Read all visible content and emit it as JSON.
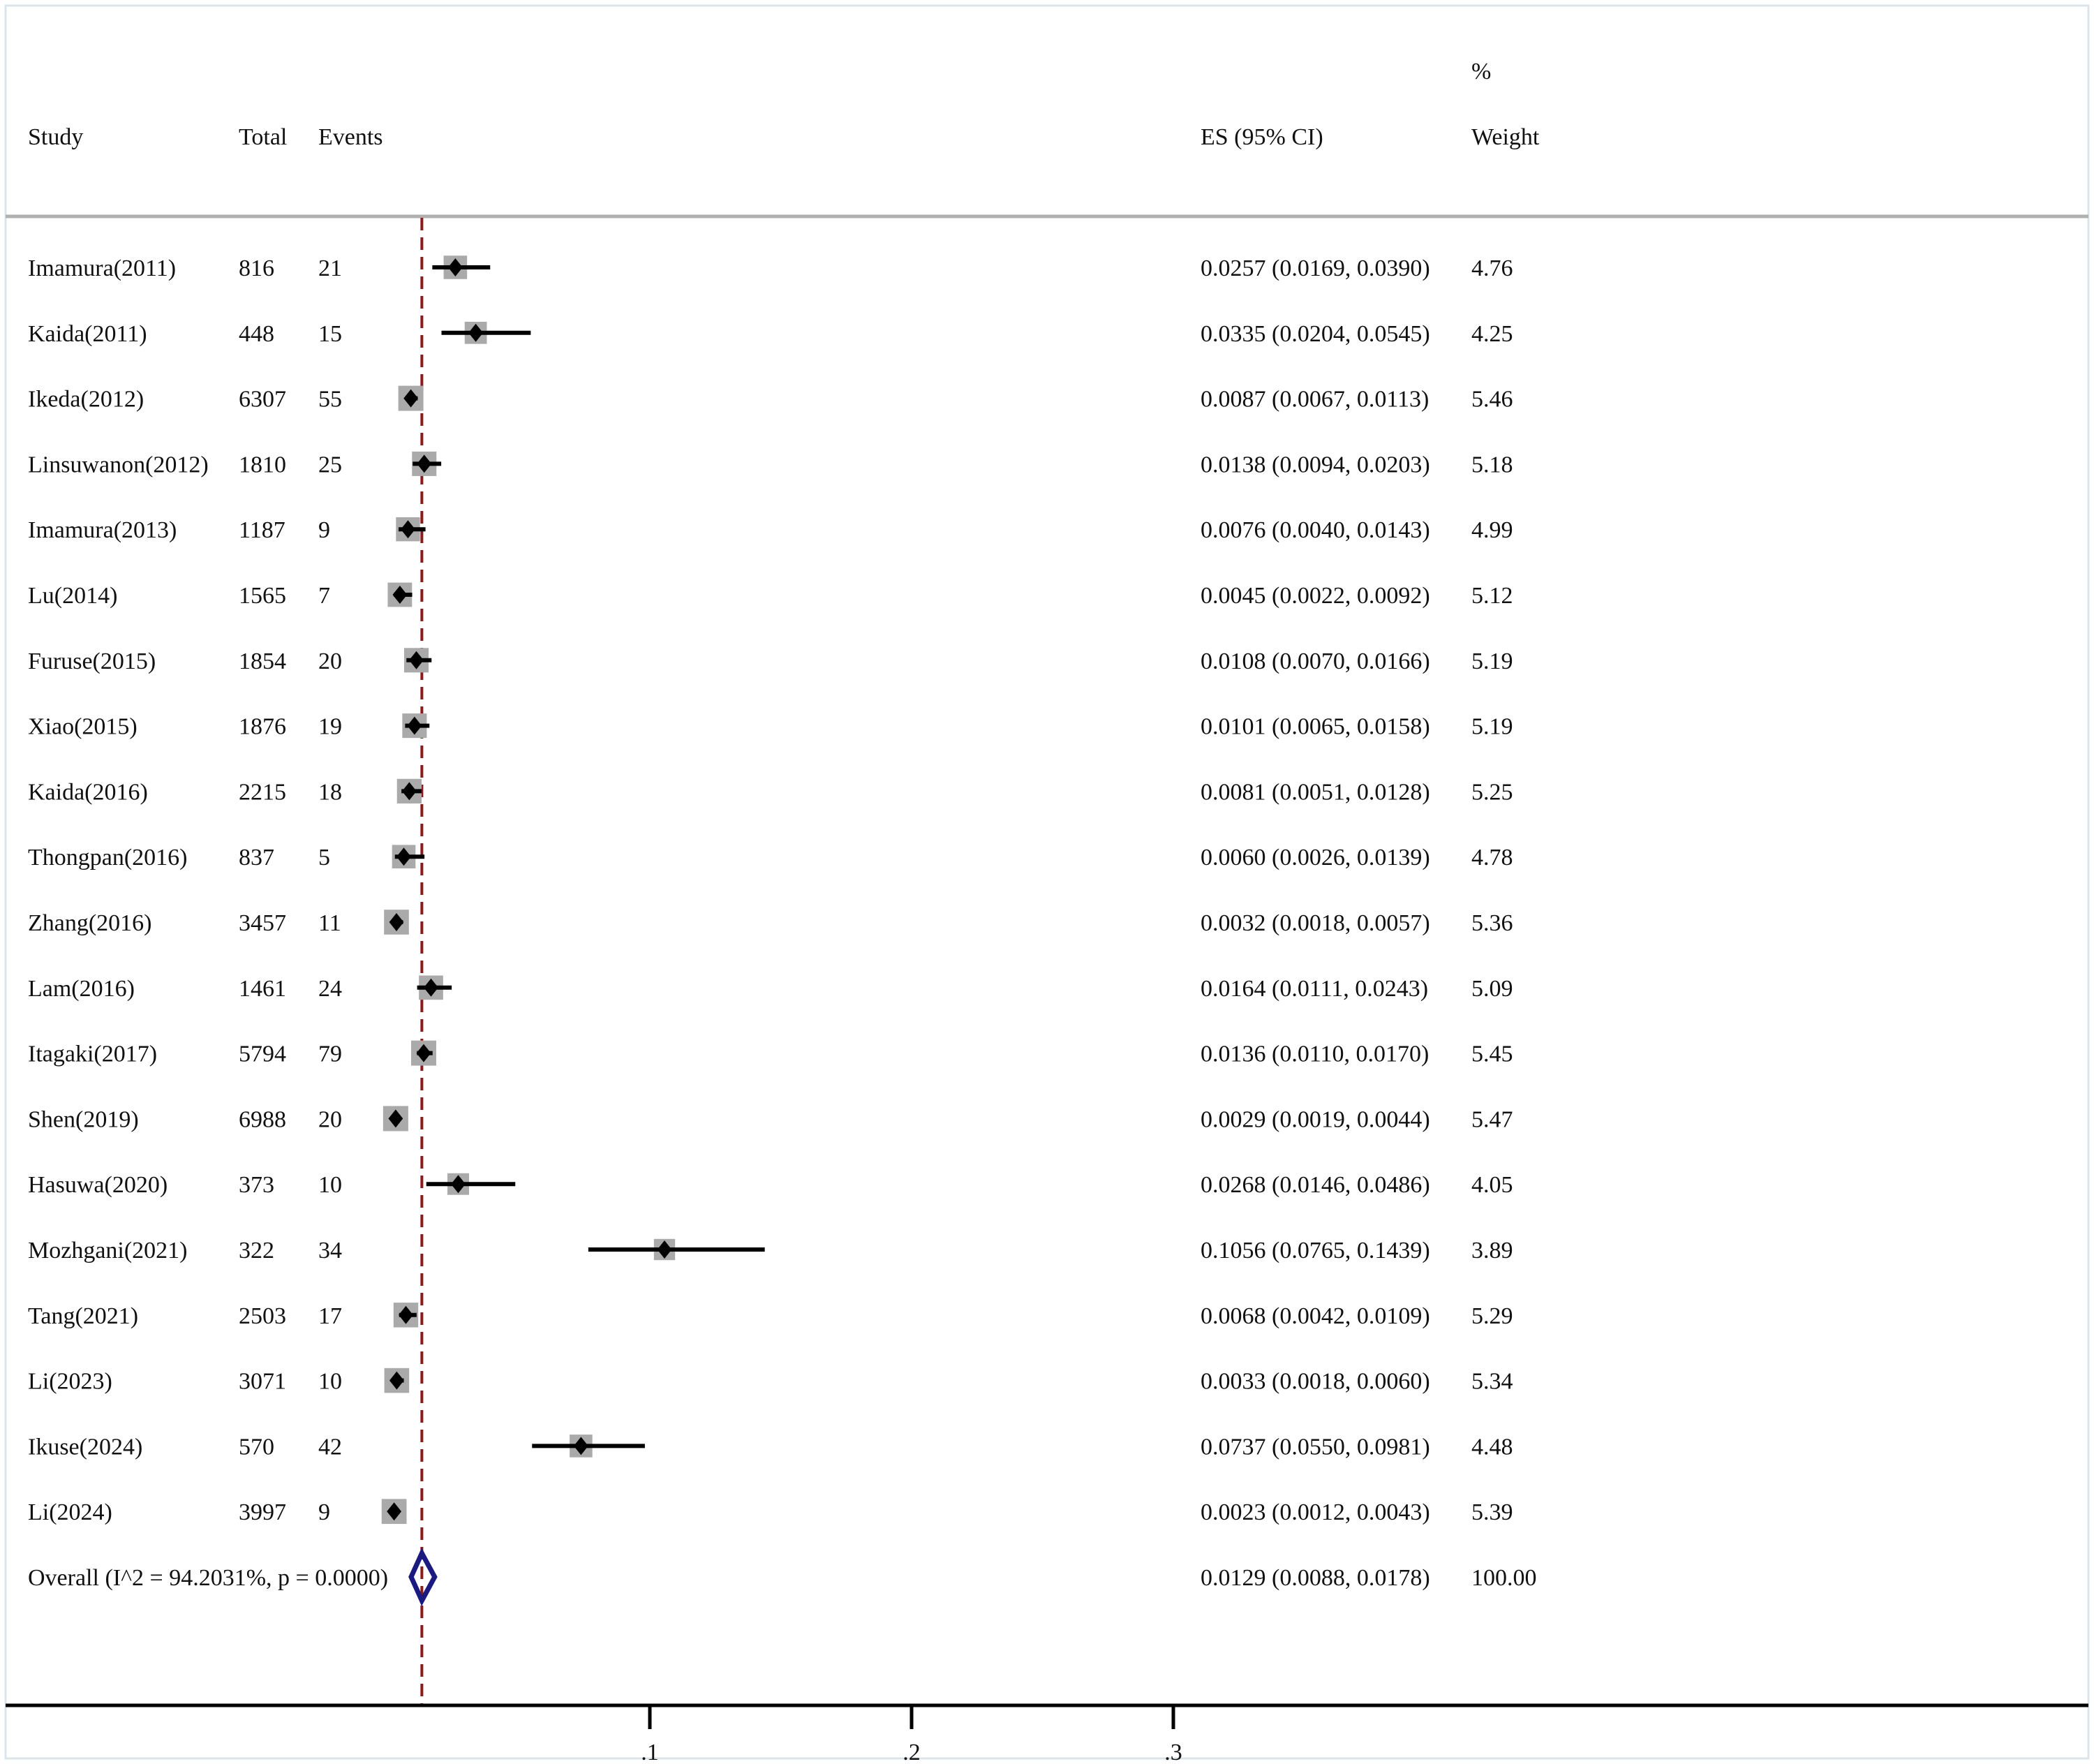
{
  "chart_data": {
    "type": "forest",
    "headers": {
      "study": "Study",
      "total": "Total",
      "events": "Events",
      "es": "ES (95% CI)",
      "weight_line1": "%",
      "weight_line2": "Weight"
    },
    "studies": [
      {
        "study": "Imamura(2011)",
        "total": "816",
        "events": "21",
        "es": 0.0257,
        "lo": 0.0169,
        "hi": 0.039,
        "es_text": "0.0257 (0.0169, 0.0390)",
        "weight": 4.76,
        "weight_text": "4.76"
      },
      {
        "study": "Kaida(2011)",
        "total": "448",
        "events": "15",
        "es": 0.0335,
        "lo": 0.0204,
        "hi": 0.0545,
        "es_text": "0.0335 (0.0204, 0.0545)",
        "weight": 4.25,
        "weight_text": "4.25"
      },
      {
        "study": "Ikeda(2012)",
        "total": "6307",
        "events": "55",
        "es": 0.0087,
        "lo": 0.0067,
        "hi": 0.0113,
        "es_text": "0.0087 (0.0067, 0.0113)",
        "weight": 5.46,
        "weight_text": "5.46"
      },
      {
        "study": "Linsuwanon(2012)",
        "total": "1810",
        "events": "25",
        "es": 0.0138,
        "lo": 0.0094,
        "hi": 0.0203,
        "es_text": "0.0138 (0.0094, 0.0203)",
        "weight": 5.18,
        "weight_text": "5.18"
      },
      {
        "study": "Imamura(2013)",
        "total": "1187",
        "events": "9",
        "es": 0.0076,
        "lo": 0.004,
        "hi": 0.0143,
        "es_text": "0.0076 (0.0040, 0.0143)",
        "weight": 4.99,
        "weight_text": "4.99"
      },
      {
        "study": "Lu(2014)",
        "total": "1565",
        "events": "7",
        "es": 0.0045,
        "lo": 0.0022,
        "hi": 0.0092,
        "es_text": "0.0045 (0.0022, 0.0092)",
        "weight": 5.12,
        "weight_text": "5.12"
      },
      {
        "study": "Furuse(2015)",
        "total": "1854",
        "events": "20",
        "es": 0.0108,
        "lo": 0.007,
        "hi": 0.0166,
        "es_text": "0.0108 (0.0070, 0.0166)",
        "weight": 5.19,
        "weight_text": "5.19"
      },
      {
        "study": "Xiao(2015)",
        "total": "1876",
        "events": "19",
        "es": 0.0101,
        "lo": 0.0065,
        "hi": 0.0158,
        "es_text": "0.0101 (0.0065, 0.0158)",
        "weight": 5.19,
        "weight_text": "5.19"
      },
      {
        "study": "Kaida(2016)",
        "total": "2215",
        "events": "18",
        "es": 0.0081,
        "lo": 0.0051,
        "hi": 0.0128,
        "es_text": "0.0081 (0.0051, 0.0128)",
        "weight": 5.25,
        "weight_text": "5.25"
      },
      {
        "study": "Thongpan(2016)",
        "total": "837",
        "events": "5",
        "es": 0.006,
        "lo": 0.0026,
        "hi": 0.0139,
        "es_text": "0.0060 (0.0026, 0.0139)",
        "weight": 4.78,
        "weight_text": "4.78"
      },
      {
        "study": "Zhang(2016)",
        "total": "3457",
        "events": "11",
        "es": 0.0032,
        "lo": 0.0018,
        "hi": 0.0057,
        "es_text": "0.0032 (0.0018, 0.0057)",
        "weight": 5.36,
        "weight_text": "5.36"
      },
      {
        "study": "Lam(2016)",
        "total": "1461",
        "events": "24",
        "es": 0.0164,
        "lo": 0.0111,
        "hi": 0.0243,
        "es_text": "0.0164 (0.0111, 0.0243)",
        "weight": 5.09,
        "weight_text": "5.09"
      },
      {
        "study": "Itagaki(2017)",
        "total": "5794",
        "events": "79",
        "es": 0.0136,
        "lo": 0.011,
        "hi": 0.017,
        "es_text": "0.0136 (0.0110, 0.0170)",
        "weight": 5.45,
        "weight_text": "5.45"
      },
      {
        "study": "Shen(2019)",
        "total": "6988",
        "events": "20",
        "es": 0.0029,
        "lo": 0.0019,
        "hi": 0.0044,
        "es_text": "0.0029 (0.0019, 0.0044)",
        "weight": 5.47,
        "weight_text": "5.47"
      },
      {
        "study": "Hasuwa(2020)",
        "total": "373",
        "events": "10",
        "es": 0.0268,
        "lo": 0.0146,
        "hi": 0.0486,
        "es_text": "0.0268 (0.0146, 0.0486)",
        "weight": 4.05,
        "weight_text": "4.05"
      },
      {
        "study": "Mozhgani(2021)",
        "total": "322",
        "events": "34",
        "es": 0.1056,
        "lo": 0.0765,
        "hi": 0.1439,
        "es_text": "0.1056 (0.0765, 0.1439)",
        "weight": 3.89,
        "weight_text": "3.89"
      },
      {
        "study": "Tang(2021)",
        "total": "2503",
        "events": "17",
        "es": 0.0068,
        "lo": 0.0042,
        "hi": 0.0109,
        "es_text": "0.0068 (0.0042, 0.0109)",
        "weight": 5.29,
        "weight_text": "5.29"
      },
      {
        "study": "Li(2023)",
        "total": "3071",
        "events": "10",
        "es": 0.0033,
        "lo": 0.0018,
        "hi": 0.006,
        "es_text": "0.0033 (0.0018, 0.0060)",
        "weight": 5.34,
        "weight_text": "5.34"
      },
      {
        "study": "Ikuse(2024)",
        "total": "570",
        "events": "42",
        "es": 0.0737,
        "lo": 0.055,
        "hi": 0.0981,
        "es_text": "0.0737 (0.0550, 0.0981)",
        "weight": 4.48,
        "weight_text": "4.48"
      },
      {
        "study": "Li(2024)",
        "total": "3997",
        "events": "9",
        "es": 0.0023,
        "lo": 0.0012,
        "hi": 0.0043,
        "es_text": "0.0023 (0.0012, 0.0043)",
        "weight": 5.39,
        "weight_text": "5.39"
      }
    ],
    "overall": {
      "label": "Overall  (I^2 = 94.2031%, p = 0.0000)",
      "es": 0.0129,
      "lo": 0.0088,
      "hi": 0.0178,
      "es_text": "0.0129 (0.0088, 0.0178)",
      "weight_text": "100.00"
    },
    "x_axis": {
      "ticks": [
        0.1,
        0.2,
        0.3
      ],
      "tick_labels": [
        ".1",
        ".2",
        ".3"
      ],
      "xlim": [
        -0.0873,
        0.6
      ]
    },
    "reference_line": {
      "value": 0.0129,
      "style": "dashed"
    },
    "colors": {
      "reference_line": "#8b1a1a",
      "weight_box": "#aaaaaa",
      "point": "#000000",
      "ci_line": "#000000",
      "overall_diamond": "#1a1a80",
      "axis": "#000000",
      "header_rule": "#b0b0b0"
    }
  }
}
